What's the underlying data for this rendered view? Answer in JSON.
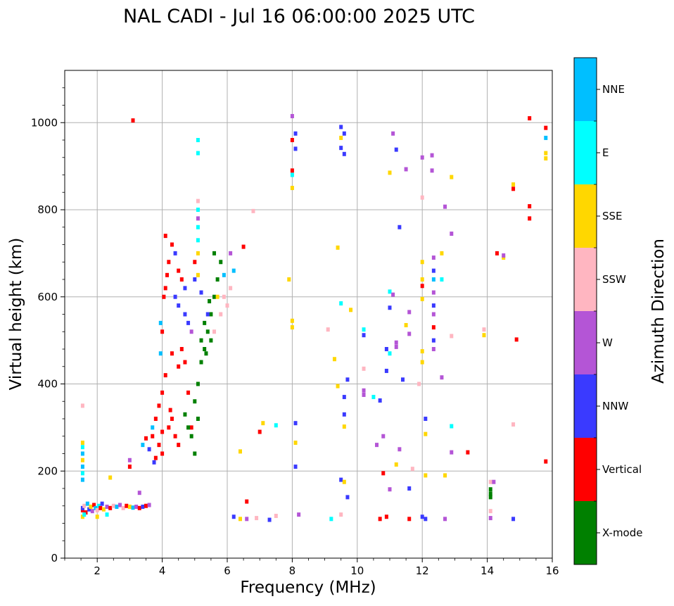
{
  "chart_data": {
    "type": "scatter",
    "title": "NAL CADI - Jul 16 06:00:00 2025 UTC",
    "xlabel": "Frequency (MHz)",
    "ylabel": "Virtual height (km)",
    "xlim": [
      1,
      16
    ],
    "ylim": [
      0,
      1120
    ],
    "xticks": [
      2,
      4,
      6,
      8,
      10,
      12,
      14,
      16
    ],
    "yticks": [
      0,
      200,
      400,
      600,
      800,
      1000
    ],
    "grid": true,
    "colorbar": {
      "label": "Azimuth Direction",
      "placement": "right",
      "categories": [
        {
          "name": "X-mode",
          "color": "#008000"
        },
        {
          "name": "Vertical",
          "color": "#ff0000"
        },
        {
          "name": "NNW",
          "color": "#3a3aff"
        },
        {
          "name": "W",
          "color": "#b455d6"
        },
        {
          "name": "SSW",
          "color": "#ffb6c1"
        },
        {
          "name": "SSE",
          "color": "#ffd700"
        },
        {
          "name": "E",
          "color": "#00ffff"
        },
        {
          "name": "NNE",
          "color": "#00bfff"
        }
      ]
    },
    "points": [
      [
        1.55,
        110,
        "Vertical"
      ],
      [
        1.55,
        115,
        "NNW"
      ],
      [
        1.6,
        120,
        "SSW"
      ],
      [
        1.65,
        105,
        "Vertical"
      ],
      [
        1.7,
        125,
        "NNE"
      ],
      [
        1.75,
        112,
        "NNW"
      ],
      [
        1.8,
        118,
        "SSE"
      ],
      [
        1.85,
        108,
        "W"
      ],
      [
        1.9,
        122,
        "Vertical"
      ],
      [
        1.95,
        115,
        "NNE"
      ],
      [
        2.0,
        110,
        "SSW"
      ],
      [
        2.05,
        120,
        "E"
      ],
      [
        2.1,
        115,
        "Vertical"
      ],
      [
        2.15,
        125,
        "NNW"
      ],
      [
        2.2,
        112,
        "SSE"
      ],
      [
        2.3,
        118,
        "W"
      ],
      [
        2.4,
        115,
        "Vertical"
      ],
      [
        2.5,
        120,
        "SSW"
      ],
      [
        2.6,
        118,
        "NNE"
      ],
      [
        2.7,
        122,
        "W"
      ],
      [
        2.8,
        115,
        "SSW"
      ],
      [
        2.9,
        120,
        "Vertical"
      ],
      [
        3.0,
        118,
        "SSE"
      ],
      [
        3.1,
        116,
        "NNE"
      ],
      [
        3.2,
        118,
        "W"
      ],
      [
        3.3,
        115,
        "Vertical"
      ],
      [
        3.4,
        118,
        "NNW"
      ],
      [
        3.5,
        120,
        "Vertical"
      ],
      [
        3.6,
        122,
        "W"
      ],
      [
        1.55,
        95,
        "SSE"
      ],
      [
        1.6,
        100,
        "E"
      ],
      [
        2.0,
        95,
        "SSE"
      ],
      [
        2.3,
        100,
        "E"
      ],
      [
        1.55,
        180,
        "NNE"
      ],
      [
        1.55,
        195,
        "E"
      ],
      [
        1.55,
        210,
        "NNE"
      ],
      [
        1.55,
        225,
        "SSE"
      ],
      [
        1.55,
        240,
        "NNE"
      ],
      [
        1.55,
        255,
        "E"
      ],
      [
        1.55,
        265,
        "SSE"
      ],
      [
        1.55,
        350,
        "SSW"
      ],
      [
        2.4,
        185,
        "SSE"
      ],
      [
        3.0,
        210,
        "Vertical"
      ],
      [
        3.0,
        225,
        "W"
      ],
      [
        3.3,
        150,
        "W"
      ],
      [
        3.1,
        1005,
        "Vertical"
      ],
      [
        3.4,
        260,
        "NNE"
      ],
      [
        3.5,
        275,
        "Vertical"
      ],
      [
        3.6,
        250,
        "NNW"
      ],
      [
        3.7,
        280,
        "Vertical"
      ],
      [
        3.8,
        230,
        "Vertical"
      ],
      [
        3.7,
        300,
        "NNE"
      ],
      [
        3.8,
        320,
        "Vertical"
      ],
      [
        3.9,
        260,
        "Vertical"
      ],
      [
        4.0,
        290,
        "Vertical"
      ],
      [
        4.0,
        240,
        "Vertical"
      ],
      [
        3.75,
        220,
        "NNW"
      ],
      [
        3.9,
        350,
        "Vertical"
      ],
      [
        4.0,
        380,
        "Vertical"
      ],
      [
        4.1,
        420,
        "Vertical"
      ],
      [
        3.95,
        470,
        "NNE"
      ],
      [
        4.0,
        520,
        "Vertical"
      ],
      [
        3.95,
        540,
        "NNE"
      ],
      [
        4.05,
        600,
        "Vertical"
      ],
      [
        4.1,
        620,
        "Vertical"
      ],
      [
        4.15,
        650,
        "Vertical"
      ],
      [
        4.2,
        680,
        "Vertical"
      ],
      [
        4.1,
        740,
        "Vertical"
      ],
      [
        4.3,
        720,
        "Vertical"
      ],
      [
        4.4,
        700,
        "NNW"
      ],
      [
        4.5,
        660,
        "Vertical"
      ],
      [
        4.6,
        640,
        "Vertical"
      ],
      [
        4.7,
        620,
        "NNW"
      ],
      [
        4.4,
        600,
        "NNW"
      ],
      [
        4.5,
        580,
        "NNW"
      ],
      [
        4.7,
        560,
        "NNW"
      ],
      [
        4.8,
        540,
        "NNW"
      ],
      [
        4.9,
        520,
        "W"
      ],
      [
        4.3,
        470,
        "Vertical"
      ],
      [
        4.5,
        440,
        "Vertical"
      ],
      [
        4.7,
        450,
        "Vertical"
      ],
      [
        4.6,
        480,
        "Vertical"
      ],
      [
        4.8,
        380,
        "Vertical"
      ],
      [
        4.3,
        320,
        "Vertical"
      ],
      [
        4.25,
        340,
        "Vertical"
      ],
      [
        4.2,
        300,
        "Vertical"
      ],
      [
        4.4,
        280,
        "Vertical"
      ],
      [
        4.5,
        260,
        "Vertical"
      ],
      [
        4.9,
        300,
        "Vertical"
      ],
      [
        5.0,
        360,
        "X-mode"
      ],
      [
        5.1,
        400,
        "X-mode"
      ],
      [
        5.2,
        450,
        "X-mode"
      ],
      [
        5.3,
        480,
        "X-mode"
      ],
      [
        5.4,
        520,
        "X-mode"
      ],
      [
        5.5,
        560,
        "X-mode"
      ],
      [
        5.6,
        600,
        "X-mode"
      ],
      [
        5.7,
        640,
        "X-mode"
      ],
      [
        5.8,
        680,
        "X-mode"
      ],
      [
        5.5,
        500,
        "X-mode"
      ],
      [
        5.3,
        540,
        "X-mode"
      ],
      [
        5.6,
        520,
        "SSW"
      ],
      [
        5.8,
        560,
        "SSW"
      ],
      [
        5.9,
        600,
        "SSW"
      ],
      [
        6.0,
        580,
        "SSW"
      ],
      [
        6.1,
        620,
        "SSW"
      ],
      [
        5.7,
        600,
        "SSE"
      ],
      [
        5.9,
        650,
        "NNE"
      ],
      [
        6.2,
        660,
        "NNE"
      ],
      [
        4.7,
        330,
        "X-mode"
      ],
      [
        4.9,
        280,
        "X-mode"
      ],
      [
        5.1,
        320,
        "X-mode"
      ],
      [
        4.8,
        300,
        "X-mode"
      ],
      [
        5.0,
        240,
        "X-mode"
      ],
      [
        5.4,
        560,
        "NNW"
      ],
      [
        5.0,
        640,
        "NNW"
      ],
      [
        5.2,
        610,
        "NNW"
      ],
      [
        5.1,
        650,
        "SSE"
      ],
      [
        5.6,
        700,
        "X-mode"
      ],
      [
        5.2,
        500,
        "X-mode"
      ],
      [
        5.35,
        470,
        "X-mode"
      ],
      [
        5.45,
        590,
        "X-mode"
      ],
      [
        5.1,
        960,
        "E"
      ],
      [
        5.1,
        930,
        "E"
      ],
      [
        5.1,
        800,
        "E"
      ],
      [
        5.1,
        760,
        "E"
      ],
      [
        5.1,
        730,
        "E"
      ],
      [
        5.1,
        820,
        "SSW"
      ],
      [
        5.1,
        780,
        "W"
      ],
      [
        5.1,
        700,
        "SSE"
      ],
      [
        5.0,
        680,
        "Vertical"
      ],
      [
        6.1,
        700,
        "W"
      ],
      [
        6.5,
        715,
        "Vertical"
      ],
      [
        6.8,
        797,
        "SSW"
      ],
      [
        6.6,
        130,
        "Vertical"
      ],
      [
        6.4,
        245,
        "SSE"
      ],
      [
        7.0,
        290,
        "Vertical"
      ],
      [
        7.1,
        310,
        "SSE"
      ],
      [
        7.5,
        305,
        "E"
      ],
      [
        7.9,
        640,
        "SSE"
      ],
      [
        8.0,
        850,
        "SSE"
      ],
      [
        8.0,
        880,
        "E"
      ],
      [
        8.0,
        890,
        "Vertical"
      ],
      [
        8.0,
        960,
        "Vertical"
      ],
      [
        8.1,
        940,
        "NNW"
      ],
      [
        8.0,
        1015,
        "W"
      ],
      [
        8.1,
        975,
        "NNW"
      ],
      [
        8.1,
        310,
        "NNW"
      ],
      [
        8.1,
        265,
        "SSE"
      ],
      [
        8.1,
        210,
        "NNW"
      ],
      [
        8.2,
        100,
        "W"
      ],
      [
        8.0,
        545,
        "SSE"
      ],
      [
        8.0,
        530,
        "SSE"
      ],
      [
        6.2,
        95,
        "NNW"
      ],
      [
        6.4,
        90,
        "SSE"
      ],
      [
        6.6,
        90,
        "W"
      ],
      [
        6.9,
        92,
        "SSW"
      ],
      [
        7.3,
        88,
        "NNW"
      ],
      [
        7.5,
        97,
        "SSW"
      ],
      [
        9.1,
        525,
        "SSW"
      ],
      [
        9.3,
        457,
        "SSE"
      ],
      [
        9.4,
        713,
        "SSE"
      ],
      [
        9.5,
        585,
        "E"
      ],
      [
        9.4,
        395,
        "SSE"
      ],
      [
        9.6,
        370,
        "NNW"
      ],
      [
        9.6,
        330,
        "NNW"
      ],
      [
        9.6,
        302,
        "SSE"
      ],
      [
        9.5,
        180,
        "NNW"
      ],
      [
        9.6,
        175,
        "SSE"
      ],
      [
        9.7,
        140,
        "NNW"
      ],
      [
        9.5,
        100,
        "SSW"
      ],
      [
        9.2,
        90,
        "E"
      ],
      [
        9.5,
        990,
        "NNW"
      ],
      [
        9.6,
        975,
        "NNW"
      ],
      [
        9.5,
        965,
        "SSE"
      ],
      [
        9.5,
        942,
        "NNW"
      ],
      [
        9.6,
        928,
        "NNW"
      ],
      [
        9.7,
        410,
        "NNW"
      ],
      [
        9.8,
        570,
        "SSE"
      ],
      [
        10.2,
        525,
        "E"
      ],
      [
        10.2,
        512,
        "NNW"
      ],
      [
        10.2,
        435,
        "SSW"
      ],
      [
        10.2,
        385,
        "W"
      ],
      [
        10.2,
        375,
        "W"
      ],
      [
        10.5,
        370,
        "E"
      ],
      [
        10.6,
        260,
        "W"
      ],
      [
        10.7,
        362,
        "NNW"
      ],
      [
        10.8,
        280,
        "W"
      ],
      [
        10.8,
        195,
        "Vertical"
      ],
      [
        10.7,
        90,
        "Vertical"
      ],
      [
        10.9,
        95,
        "Vertical"
      ],
      [
        10.9,
        480,
        "NNW"
      ],
      [
        10.9,
        430,
        "NNW"
      ],
      [
        11.0,
        470,
        "E"
      ],
      [
        11.0,
        612,
        "E"
      ],
      [
        11.1,
        605,
        "W"
      ],
      [
        11.2,
        495,
        "W"
      ],
      [
        11.2,
        485,
        "W"
      ],
      [
        11.1,
        975,
        "W"
      ],
      [
        11.2,
        938,
        "NNW"
      ],
      [
        11.0,
        885,
        "SSE"
      ],
      [
        11.2,
        215,
        "SSE"
      ],
      [
        11.3,
        250,
        "W"
      ],
      [
        11.4,
        410,
        "NNW"
      ],
      [
        11.5,
        535,
        "SSE"
      ],
      [
        11.6,
        565,
        "W"
      ],
      [
        11.6,
        515,
        "W"
      ],
      [
        11.5,
        893,
        "W"
      ],
      [
        11.6,
        90,
        "Vertical"
      ],
      [
        11.6,
        160,
        "NNW"
      ],
      [
        11.7,
        205,
        "SSW"
      ],
      [
        11.0,
        575,
        "NNW"
      ],
      [
        11.0,
        158,
        "W"
      ],
      [
        11.3,
        760,
        "NNW"
      ],
      [
        11.9,
        400,
        "SSW"
      ],
      [
        12.0,
        828,
        "SSW"
      ],
      [
        12.0,
        920,
        "W"
      ],
      [
        12.0,
        680,
        "SSE"
      ],
      [
        12.0,
        640,
        "SSE"
      ],
      [
        12.0,
        625,
        "Vertical"
      ],
      [
        12.0,
        595,
        "SSE"
      ],
      [
        12.0,
        475,
        "SSE"
      ],
      [
        12.0,
        450,
        "SSE"
      ],
      [
        12.0,
        95,
        "NNW"
      ],
      [
        12.1,
        90,
        "NNW"
      ],
      [
        12.1,
        320,
        "NNW"
      ],
      [
        12.1,
        285,
        "SSE"
      ],
      [
        12.1,
        190,
        "SSE"
      ],
      [
        12.3,
        925,
        "W"
      ],
      [
        12.3,
        890,
        "W"
      ],
      [
        12.35,
        690,
        "W"
      ],
      [
        12.35,
        660,
        "NNW"
      ],
      [
        12.35,
        640,
        "NNE"
      ],
      [
        12.35,
        610,
        "W"
      ],
      [
        12.35,
        580,
        "NNW"
      ],
      [
        12.35,
        560,
        "W"
      ],
      [
        12.35,
        530,
        "Vertical"
      ],
      [
        12.35,
        500,
        "NNW"
      ],
      [
        12.35,
        480,
        "W"
      ],
      [
        12.6,
        700,
        "SSE"
      ],
      [
        12.7,
        807,
        "W"
      ],
      [
        12.6,
        640,
        "E"
      ],
      [
        12.6,
        415,
        "W"
      ],
      [
        12.7,
        90,
        "W"
      ],
      [
        12.7,
        190,
        "SSE"
      ],
      [
        12.9,
        875,
        "SSE"
      ],
      [
        12.9,
        745,
        "W"
      ],
      [
        12.9,
        510,
        "SSW"
      ],
      [
        12.9,
        303,
        "E"
      ],
      [
        12.9,
        243,
        "W"
      ],
      [
        13.4,
        243,
        "Vertical"
      ],
      [
        13.9,
        525,
        "SSW"
      ],
      [
        13.9,
        512,
        "SSE"
      ],
      [
        14.1,
        158,
        "X-mode"
      ],
      [
        14.1,
        148,
        "X-mode"
      ],
      [
        14.1,
        140,
        "X-mode"
      ],
      [
        14.1,
        175,
        "SSW"
      ],
      [
        14.1,
        108,
        "SSW"
      ],
      [
        14.1,
        92,
        "W"
      ],
      [
        14.2,
        175,
        "W"
      ],
      [
        14.3,
        700,
        "Vertical"
      ],
      [
        14.5,
        690,
        "SSE"
      ],
      [
        14.5,
        695,
        "W"
      ],
      [
        14.8,
        858,
        "SSE"
      ],
      [
        14.8,
        848,
        "Vertical"
      ],
      [
        14.8,
        307,
        "SSW"
      ],
      [
        14.9,
        502,
        "Vertical"
      ],
      [
        14.8,
        90,
        "NNW"
      ],
      [
        15.3,
        1010,
        "Vertical"
      ],
      [
        15.3,
        808,
        "Vertical"
      ],
      [
        15.3,
        780,
        "Vertical"
      ],
      [
        15.8,
        988,
        "Vertical"
      ],
      [
        15.8,
        965,
        "NNE"
      ],
      [
        15.8,
        930,
        "SSE"
      ],
      [
        15.8,
        918,
        "SSE"
      ],
      [
        15.8,
        222,
        "Vertical"
      ]
    ]
  }
}
